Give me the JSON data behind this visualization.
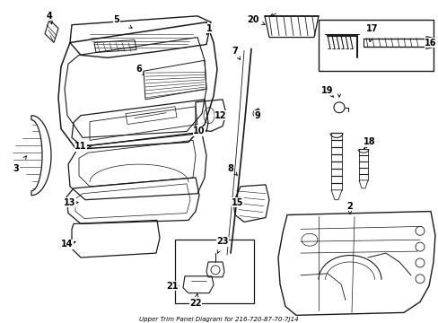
{
  "title": "Upper Trim Panel Diagram for 216-720-87-70-7J14",
  "bg": "#ffffff",
  "lc": "#1a1a1a",
  "fig_w": 4.89,
  "fig_h": 3.6,
  "dpi": 100
}
